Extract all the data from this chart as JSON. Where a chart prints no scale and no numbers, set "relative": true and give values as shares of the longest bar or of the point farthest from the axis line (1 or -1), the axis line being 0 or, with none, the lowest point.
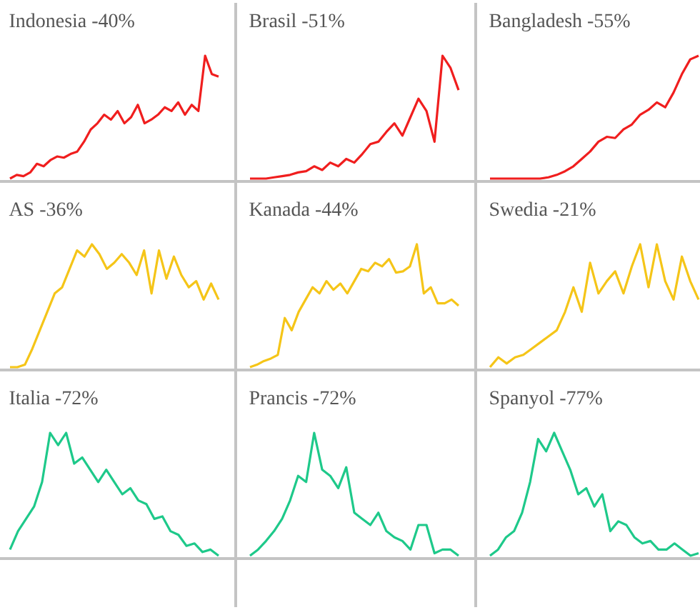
{
  "chart_data": [
    {
      "type": "line",
      "title": "Indonesia -40%",
      "relative": true,
      "categories": [
        null,
        null,
        null,
        null,
        null,
        null,
        null,
        null,
        null,
        null,
        null,
        null,
        null,
        null,
        null,
        null,
        null,
        null,
        null,
        null,
        null,
        null,
        null,
        null,
        null,
        null,
        null,
        null,
        null,
        null,
        null,
        null
      ],
      "series": [
        {
          "color": "#f01e1e",
          "values": [
            0.0,
            0.03,
            0.02,
            0.05,
            0.12,
            0.1,
            0.15,
            0.18,
            0.17,
            0.2,
            0.22,
            0.3,
            0.4,
            0.45,
            0.52,
            0.48,
            0.55,
            0.45,
            0.5,
            0.6,
            0.45,
            0.48,
            0.52,
            0.58,
            0.55,
            0.62,
            0.52,
            0.6,
            0.55,
            1.0,
            0.85,
            0.83
          ]
        }
      ]
    },
    {
      "type": "line",
      "title": "Brasil -51%",
      "relative": true,
      "categories": [
        null,
        null,
        null,
        null,
        null,
        null,
        null,
        null,
        null,
        null,
        null,
        null,
        null,
        null,
        null,
        null,
        null,
        null,
        null,
        null,
        null,
        null,
        null,
        null,
        null,
        null,
        null
      ],
      "series": [
        {
          "color": "#f01e1e",
          "values": [
            0,
            0,
            0,
            0.01,
            0.02,
            0.03,
            0.05,
            0.06,
            0.1,
            0.07,
            0.13,
            0.1,
            0.16,
            0.13,
            0.2,
            0.28,
            0.3,
            0.38,
            0.45,
            0.35,
            0.5,
            0.65,
            0.55,
            0.3,
            1.0,
            0.9,
            0.72
          ]
        }
      ]
    },
    {
      "type": "line",
      "title": "Bangladesh -55%",
      "relative": true,
      "categories": [
        null,
        null,
        null,
        null,
        null,
        null,
        null,
        null,
        null,
        null,
        null,
        null,
        null,
        null,
        null,
        null,
        null,
        null,
        null,
        null,
        null,
        null,
        null,
        null,
        null,
        null
      ],
      "series": [
        {
          "color": "#f01e1e",
          "values": [
            0,
            0,
            0,
            0,
            0,
            0,
            0,
            0.01,
            0.03,
            0.06,
            0.1,
            0.16,
            0.22,
            0.3,
            0.34,
            0.33,
            0.4,
            0.44,
            0.52,
            0.56,
            0.62,
            0.58,
            0.7,
            0.85,
            0.97,
            1.0
          ]
        }
      ]
    },
    {
      "type": "line",
      "title": "AS -36%",
      "relative": true,
      "categories": [
        null,
        null,
        null,
        null,
        null,
        null,
        null,
        null,
        null,
        null,
        null,
        null,
        null,
        null,
        null,
        null,
        null,
        null,
        null,
        null,
        null,
        null,
        null,
        null,
        null,
        null,
        null,
        null,
        null
      ],
      "series": [
        {
          "color": "#f5c518",
          "values": [
            0,
            0,
            0.02,
            0.15,
            0.3,
            0.45,
            0.6,
            0.65,
            0.8,
            0.95,
            0.9,
            1.0,
            0.92,
            0.8,
            0.85,
            0.92,
            0.85,
            0.75,
            0.95,
            0.6,
            0.95,
            0.72,
            0.9,
            0.75,
            0.65,
            0.7,
            0.55,
            0.68,
            0.55
          ]
        }
      ]
    },
    {
      "type": "line",
      "title": "Kanada -44%",
      "relative": true,
      "categories": [
        null,
        null,
        null,
        null,
        null,
        null,
        null,
        null,
        null,
        null,
        null,
        null,
        null,
        null,
        null,
        null,
        null,
        null,
        null,
        null,
        null,
        null,
        null,
        null,
        null,
        null,
        null,
        null,
        null,
        null,
        null
      ],
      "series": [
        {
          "color": "#f5c518",
          "values": [
            0,
            0.02,
            0.05,
            0.07,
            0.1,
            0.4,
            0.3,
            0.45,
            0.55,
            0.65,
            0.6,
            0.7,
            0.63,
            0.68,
            0.6,
            0.7,
            0.8,
            0.78,
            0.85,
            0.82,
            0.88,
            0.77,
            0.78,
            0.82,
            1.0,
            0.6,
            0.65,
            0.52,
            0.52,
            0.55,
            0.5
          ]
        }
      ]
    },
    {
      "type": "line",
      "title": "Swedia -21%",
      "relative": true,
      "categories": [
        null,
        null,
        null,
        null,
        null,
        null,
        null,
        null,
        null,
        null,
        null,
        null,
        null,
        null,
        null,
        null,
        null,
        null,
        null,
        null,
        null,
        null,
        null,
        null,
        null,
        null
      ],
      "series": [
        {
          "color": "#f5c518",
          "values": [
            0,
            0.08,
            0.03,
            0.08,
            0.1,
            0.15,
            0.2,
            0.25,
            0.3,
            0.45,
            0.65,
            0.45,
            0.85,
            0.6,
            0.7,
            0.78,
            0.6,
            0.82,
            1.0,
            0.65,
            1.0,
            0.7,
            0.55,
            0.9,
            0.7,
            0.55
          ]
        }
      ]
    },
    {
      "type": "line",
      "title": "Italia -72%",
      "relative": true,
      "categories": [
        null,
        null,
        null,
        null,
        null,
        null,
        null,
        null,
        null,
        null,
        null,
        null,
        null,
        null,
        null,
        null,
        null,
        null,
        null,
        null,
        null,
        null,
        null,
        null,
        null,
        null,
        null
      ],
      "series": [
        {
          "color": "#1ec98a",
          "values": [
            0.05,
            0.2,
            0.3,
            0.4,
            0.6,
            1.0,
            0.9,
            1.0,
            0.75,
            0.8,
            0.7,
            0.6,
            0.7,
            0.6,
            0.5,
            0.55,
            0.45,
            0.42,
            0.3,
            0.32,
            0.2,
            0.17,
            0.08,
            0.1,
            0.03,
            0.05,
            0.0
          ]
        }
      ]
    },
    {
      "type": "line",
      "title": "Prancis -72%",
      "relative": true,
      "categories": [
        null,
        null,
        null,
        null,
        null,
        null,
        null,
        null,
        null,
        null,
        null,
        null,
        null,
        null,
        null,
        null,
        null,
        null,
        null,
        null,
        null,
        null,
        null,
        null,
        null,
        null,
        null
      ],
      "series": [
        {
          "color": "#1ec98a",
          "values": [
            0,
            0.05,
            0.12,
            0.2,
            0.3,
            0.45,
            0.65,
            0.6,
            1.0,
            0.7,
            0.65,
            0.55,
            0.72,
            0.35,
            0.3,
            0.25,
            0.35,
            0.2,
            0.15,
            0.12,
            0.05,
            0.25,
            0.25,
            0.02,
            0.05,
            0.05,
            0.0
          ]
        }
      ]
    },
    {
      "type": "line",
      "title": "Spanyol -77%",
      "relative": true,
      "categories": [
        null,
        null,
        null,
        null,
        null,
        null,
        null,
        null,
        null,
        null,
        null,
        null,
        null,
        null,
        null,
        null,
        null,
        null,
        null,
        null,
        null,
        null,
        null,
        null,
        null,
        null,
        null
      ],
      "series": [
        {
          "color": "#1ec98a",
          "values": [
            0,
            0.05,
            0.15,
            0.2,
            0.35,
            0.6,
            0.95,
            0.85,
            1.0,
            0.85,
            0.7,
            0.5,
            0.55,
            0.4,
            0.5,
            0.2,
            0.28,
            0.25,
            0.15,
            0.1,
            0.12,
            0.05,
            0.05,
            0.1,
            0.05,
            0.0,
            0.02
          ]
        }
      ]
    }
  ]
}
